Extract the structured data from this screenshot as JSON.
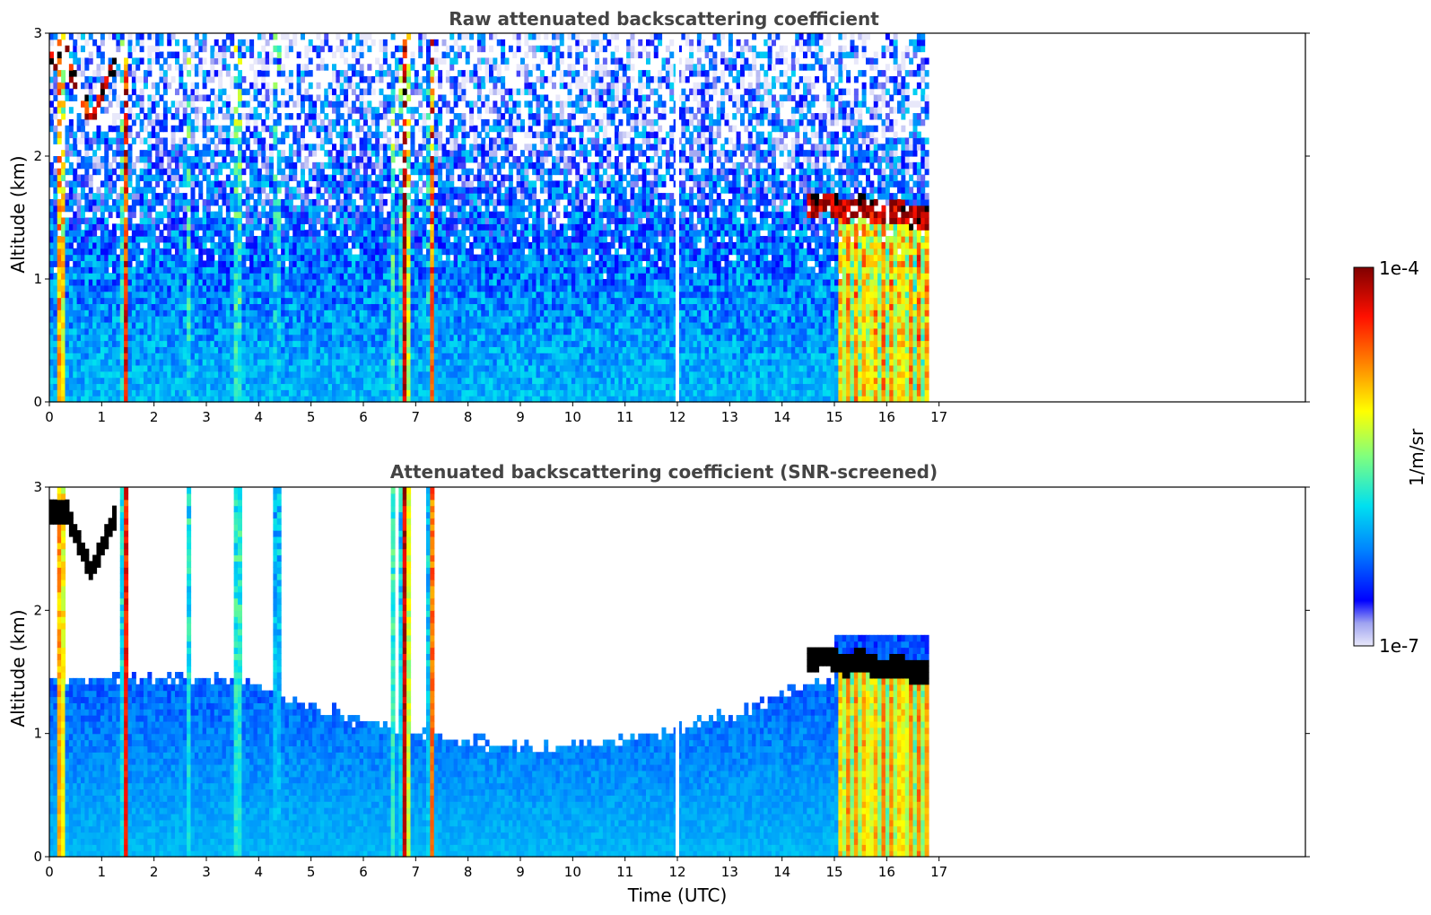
{
  "chart_data": [
    {
      "type": "heatmap",
      "title": "Raw attenuated backscattering coefficient",
      "xlabel": "",
      "ylabel": "Altitude (km)",
      "xlim": [
        0,
        24
      ],
      "ylim": [
        0,
        3
      ],
      "xticks": [
        "0",
        "1",
        "2",
        "3",
        "4",
        "5",
        "6",
        "7",
        "8",
        "9",
        "10",
        "11",
        "12",
        "13",
        "14",
        "15",
        "16",
        "17"
      ],
      "yticks": [
        "0",
        "1",
        "2",
        "3"
      ],
      "data_end_hour": 16.8,
      "gap_hour": 12.0,
      "screened": false,
      "grid": false
    },
    {
      "type": "heatmap",
      "title": "Attenuated backscattering coefficient (SNR-screened)",
      "xlabel": "Time (UTC)",
      "ylabel": "Altitude (km)",
      "xlim": [
        0,
        24
      ],
      "ylim": [
        0,
        3
      ],
      "xticks": [
        "0",
        "1",
        "2",
        "3",
        "4",
        "5",
        "6",
        "7",
        "8",
        "9",
        "10",
        "11",
        "12",
        "13",
        "14",
        "15",
        "16",
        "17"
      ],
      "yticks": [
        "0",
        "1",
        "2",
        "3"
      ],
      "data_end_hour": 16.8,
      "gap_hour": 12.0,
      "screened": true,
      "grid": false
    }
  ],
  "colorbar": {
    "min_label": "1e-7",
    "max_label": "1e-4",
    "unit": "1/m/sr",
    "colormap": "jet",
    "scale": "log"
  }
}
